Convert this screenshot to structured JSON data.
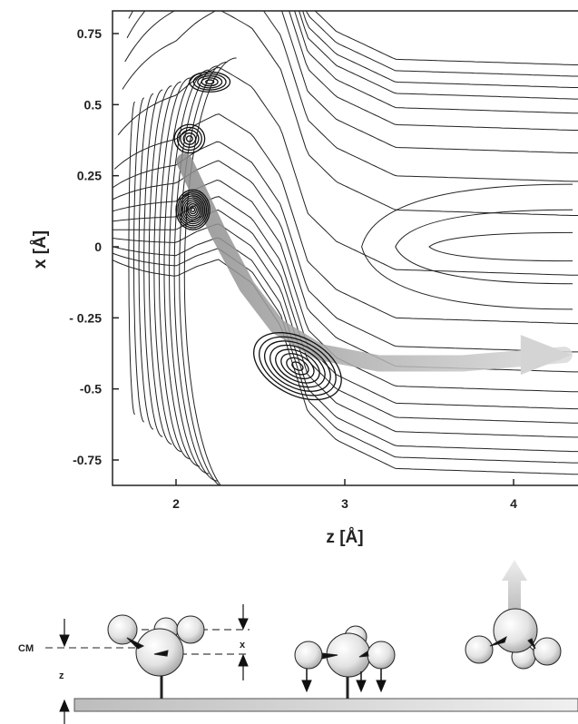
{
  "chart_data": {
    "type": "contour",
    "xlabel": "z [Å]",
    "ylabel": "x [Å]",
    "xlim": [
      1.6,
      4.35
    ],
    "ylim": [
      -0.85,
      0.8
    ],
    "x_ticks": [
      {
        "value": 2,
        "label": "2"
      },
      {
        "value": 3,
        "label": "3"
      },
      {
        "value": 4,
        "label": "4"
      }
    ],
    "y_ticks": [
      {
        "value": 0.75,
        "label": "0.75"
      },
      {
        "value": 0.5,
        "label": "0.5"
      },
      {
        "value": 0.25,
        "label": "0.25"
      },
      {
        "value": 0,
        "label": "0"
      },
      {
        "value": -0.25,
        "label": "- 0.25"
      },
      {
        "value": -0.5,
        "label": "-0.5"
      },
      {
        "value": -0.75,
        "label": "-0.75"
      }
    ],
    "potential_contours": {
      "valley_x": [
        0.06,
        0.06,
        0.1,
        0.13,
        0.05,
        -0.1,
        -0.4,
        -0.5,
        -0.6,
        -0.62
      ],
      "valley_z": [
        1.78,
        2.0,
        2.12,
        2.25,
        2.45,
        2.62,
        2.78,
        2.95,
        3.3,
        4.35
      ],
      "asymptotic_x_levels": [
        0.64,
        0.6,
        0.56,
        0.52,
        0.47,
        0.41,
        0.33,
        0.23,
        0.11,
        -0.1,
        -0.27,
        -0.37,
        -0.44,
        -0.51,
        -0.57,
        -0.62,
        -0.67,
        -0.72,
        -0.76,
        -0.8
      ]
    },
    "density_peaks": [
      {
        "z": 2.1,
        "x": 0.13,
        "sz": 0.1,
        "sx": 0.07
      },
      {
        "z": 2.08,
        "x": 0.38,
        "sz": 0.09,
        "sx": 0.05
      },
      {
        "z": 2.2,
        "x": 0.58,
        "sz": 0.12,
        "sx": 0.035
      },
      {
        "z": 2.72,
        "x": -0.42,
        "sz": 0.28,
        "sx": 0.1
      }
    ],
    "path_arrow": {
      "z": [
        2.05,
        2.25,
        2.42,
        2.6,
        2.85,
        3.2,
        3.7,
        4.3
      ],
      "x": [
        0.3,
        0.05,
        -0.14,
        -0.28,
        -0.37,
        -0.41,
        -0.41,
        -0.38
      ]
    }
  },
  "schematic": {
    "label_cm": "CM",
    "label_z": "z",
    "label_x": "x"
  }
}
